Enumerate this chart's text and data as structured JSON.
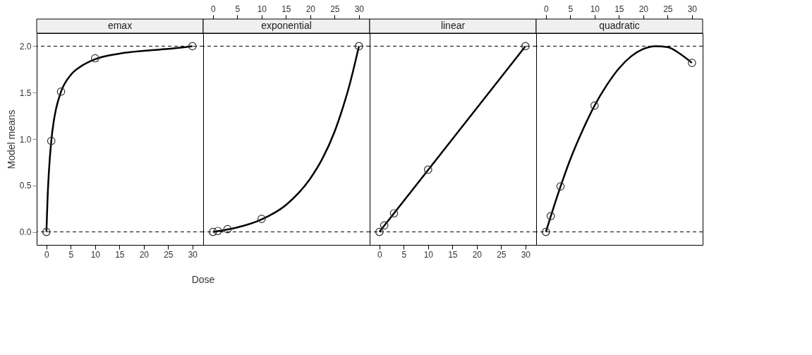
{
  "chart_data": [
    {
      "type": "line",
      "title": "emax",
      "ylabel": "Model means",
      "xlim": [
        -2,
        32.2
      ],
      "ylim": [
        -0.14,
        2.14
      ],
      "xticks": [
        0,
        5,
        10,
        15,
        20,
        25,
        30
      ],
      "yticks": [
        {
          "value": 0,
          "label": "0.0"
        },
        0.5,
        {
          "value": 1,
          "label": "1.0"
        },
        1.5,
        {
          "value": 2,
          "label": "2.0"
        }
      ],
      "ref_lines": [
        {
          "axis": "y",
          "value": 0,
          "line_style": "dashed",
          "color": "#000000"
        },
        {
          "axis": "y",
          "value": 2,
          "line_style": "dashed",
          "color": "#000000"
        }
      ],
      "series": [
        {
          "type": "line",
          "color": "#000000",
          "x": [
            0,
            0.25,
            0.5,
            1,
            1.5,
            2,
            3,
            5,
            7,
            10,
            15,
            20,
            25,
            30
          ],
          "values": [
            0,
            0.38,
            0.64,
            0.98,
            1.19,
            1.33,
            1.51,
            1.69,
            1.78,
            1.86,
            1.92,
            1.95,
            1.97,
            2.0
          ]
        },
        {
          "type": "scatter",
          "marker": "circle",
          "color": "#333333",
          "x": [
            0,
            1,
            3,
            10,
            30
          ],
          "values": [
            0,
            0.98,
            1.51,
            1.87,
            2.0
          ]
        }
      ]
    },
    {
      "type": "line",
      "title": "exponential",
      "xlabel": "Dose",
      "xlim": [
        -2,
        32.2
      ],
      "ylim": [
        -0.14,
        2.14
      ],
      "xticks": [
        0,
        5,
        10,
        15,
        20,
        25,
        30
      ],
      "yticks": [
        0.0,
        0.5,
        1.0,
        1.5,
        2.0
      ],
      "tick_labels": "x",
      "ref_lines": [
        {
          "axis": "y",
          "value": 0,
          "line_style": "dashed",
          "color": "#000000"
        },
        {
          "axis": "y",
          "value": 2,
          "line_style": "dashed",
          "color": "#000000"
        }
      ],
      "series": [
        {
          "type": "line",
          "color": "#000000",
          "x": [
            0,
            5,
            10,
            15,
            20,
            22.5,
            25,
            27,
            28,
            30
          ],
          "values": [
            0,
            0.048,
            0.135,
            0.29,
            0.575,
            0.79,
            1.08,
            1.39,
            1.57,
            2.0
          ]
        },
        {
          "type": "scatter",
          "marker": "circle",
          "color": "#333333",
          "x": [
            0,
            1,
            3,
            10,
            30
          ],
          "values": [
            0,
            0.01,
            0.03,
            0.14,
            2.0
          ]
        }
      ]
    },
    {
      "type": "line",
      "title": "linear",
      "xlim": [
        -2,
        32.2
      ],
      "ylim": [
        -0.14,
        2.14
      ],
      "xticks": [
        0,
        5,
        10,
        15,
        20,
        25,
        30
      ],
      "yticks": [
        0.0,
        0.5,
        1.0,
        1.5,
        2.0
      ],
      "tick_labels": "x",
      "ref_lines": [
        {
          "axis": "y",
          "value": 0,
          "line_style": "dashed",
          "color": "#000000"
        },
        {
          "axis": "y",
          "value": 2,
          "line_style": "dashed",
          "color": "#000000"
        }
      ],
      "series": [
        {
          "type": "line",
          "color": "#000000",
          "x": [
            0,
            30
          ],
          "values": [
            0,
            2.0
          ]
        },
        {
          "type": "scatter",
          "marker": "circle",
          "color": "#333333",
          "x": [
            0,
            1,
            3,
            10,
            30
          ],
          "values": [
            0,
            0.07,
            0.2,
            0.67,
            2.0
          ]
        }
      ]
    },
    {
      "type": "line",
      "title": "quadratic",
      "xlim": [
        -2,
        32.2
      ],
      "ylim": [
        -0.14,
        2.14
      ],
      "xticks": [
        0,
        5,
        10,
        15,
        20,
        25,
        30
      ],
      "yticks": [
        0.0,
        0.5,
        1.0,
        1.5,
        2.0
      ],
      "tick_labels": "x",
      "ref_lines": [
        {
          "axis": "y",
          "value": 0,
          "line_style": "dashed",
          "color": "#000000"
        },
        {
          "axis": "y",
          "value": 2,
          "line_style": "dashed",
          "color": "#000000"
        }
      ],
      "series": [
        {
          "type": "line",
          "color": "#000000",
          "x": [
            0,
            2.5,
            5,
            7.5,
            10,
            12.5,
            15,
            17.5,
            20,
            22.5,
            25,
            27.5,
            30
          ],
          "values": [
            0,
            0.41,
            0.78,
            1.09,
            1.36,
            1.58,
            1.76,
            1.89,
            1.97,
            2.0,
            1.99,
            1.92,
            1.82
          ]
        },
        {
          "type": "scatter",
          "marker": "circle",
          "color": "#333333",
          "x": [
            0,
            1,
            3,
            10,
            30
          ],
          "values": [
            0,
            0.17,
            0.49,
            1.36,
            1.82
          ]
        }
      ]
    }
  ]
}
